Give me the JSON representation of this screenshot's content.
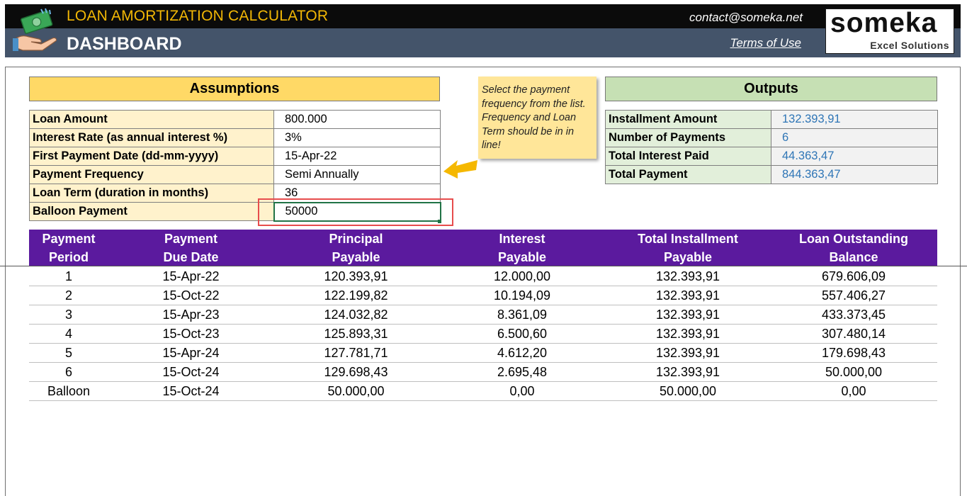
{
  "header": {
    "title": "LOAN AMORTIZATION CALCULATOR",
    "subtitle": "DASHBOARD",
    "contact": "contact@someka.net",
    "terms": "Terms of Use",
    "brand_name": "someka",
    "brand_tagline": "Excel Solutions",
    "icon": "money-hand-icon"
  },
  "colors": {
    "header_top": "#0b0b0b",
    "header_bottom": "#44546a",
    "title_yellow": "#f2b705",
    "assumptions_header": "#ffd966",
    "assumptions_label_bg": "#fff2cc",
    "outputs_header": "#c6e0b4",
    "outputs_label_bg": "#e2efda",
    "output_value": "#2e75b6",
    "schedule_header": "#5b1a9e",
    "highlight_box": "#e74c4c",
    "arrow": "#f5b800"
  },
  "assumptions": {
    "title": "Assumptions",
    "rows": [
      {
        "label": "Loan Amount",
        "value": "800.000"
      },
      {
        "label": "Interest Rate (as annual interest %)",
        "value": "3%"
      },
      {
        "label": "First Payment Date (dd-mm-yyyy)",
        "value": "15-Apr-22"
      },
      {
        "label": "Payment Frequency",
        "value": "Semi Annually"
      },
      {
        "label": "Loan Term (duration in months)",
        "value": "36"
      },
      {
        "label": "Balloon Payment",
        "value": "50000"
      }
    ]
  },
  "note": {
    "text": "Select the payment frequency from the list. Frequency and Loan Term should be in in line!"
  },
  "outputs": {
    "title": "Outputs",
    "rows": [
      {
        "label": "Installment Amount",
        "value": "132.393,91"
      },
      {
        "label": "Number of Payments",
        "value": "6"
      },
      {
        "label": "Total Interest Paid",
        "value": "44.363,47"
      },
      {
        "label": "Total Payment",
        "value": "844.363,47"
      }
    ]
  },
  "schedule": {
    "columns": [
      {
        "line1": "Payment",
        "line2": "Period"
      },
      {
        "line1": "Payment",
        "line2": "Due Date"
      },
      {
        "line1": "Principal",
        "line2": "Payable"
      },
      {
        "line1": "Interest",
        "line2": "Payable"
      },
      {
        "line1": "Total Installment",
        "line2": "Payable"
      },
      {
        "line1": "Loan Outstanding",
        "line2": "Balance"
      }
    ],
    "rows": [
      [
        "1",
        "15-Apr-22",
        "120.393,91",
        "12.000,00",
        "132.393,91",
        "679.606,09"
      ],
      [
        "2",
        "15-Oct-22",
        "122.199,82",
        "10.194,09",
        "132.393,91",
        "557.406,27"
      ],
      [
        "3",
        "15-Apr-23",
        "124.032,82",
        "8.361,09",
        "132.393,91",
        "433.373,45"
      ],
      [
        "4",
        "15-Oct-23",
        "125.893,31",
        "6.500,60",
        "132.393,91",
        "307.480,14"
      ],
      [
        "5",
        "15-Apr-24",
        "127.781,71",
        "4.612,20",
        "132.393,91",
        "179.698,43"
      ],
      [
        "6",
        "15-Oct-24",
        "129.698,43",
        "2.695,48",
        "132.393,91",
        "50.000,00"
      ],
      [
        "Balloon",
        "15-Oct-24",
        "50.000,00",
        "0,00",
        "50.000,00",
        "0,00"
      ]
    ]
  }
}
